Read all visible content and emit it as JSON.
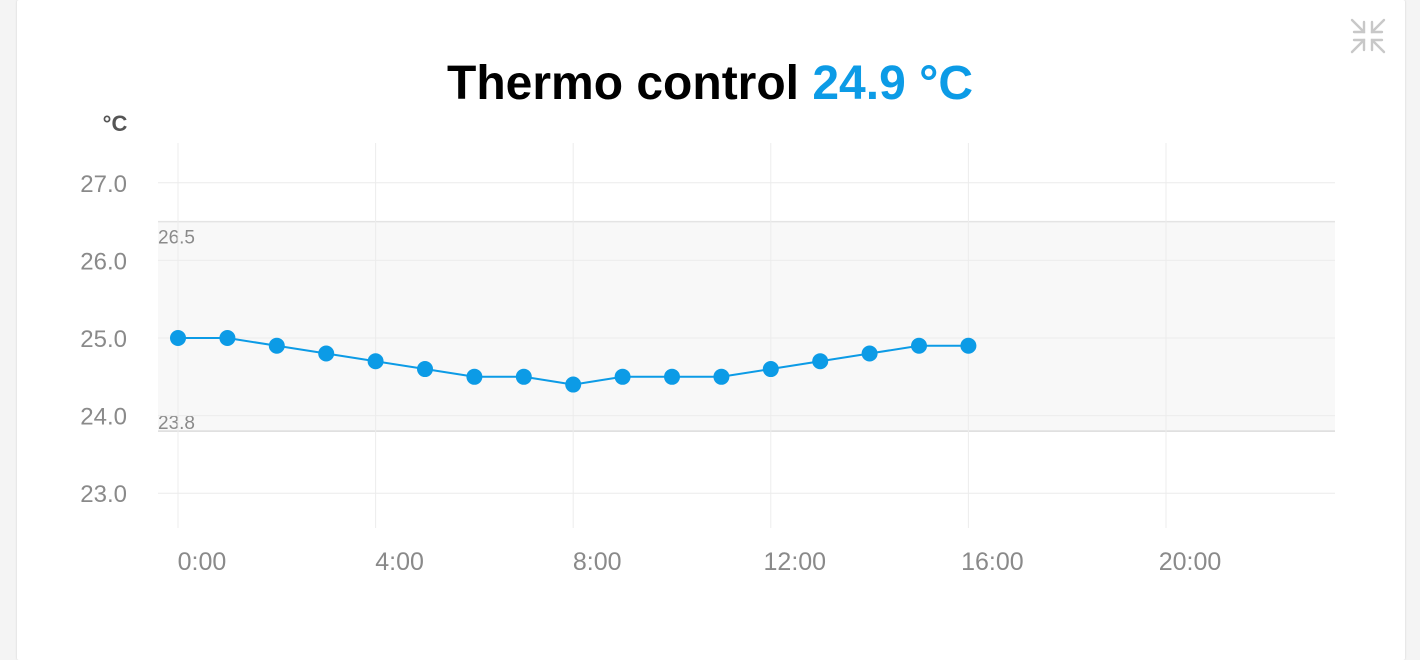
{
  "header": {
    "title": "Thermo control",
    "current_value": "24.9 °C"
  },
  "colors": {
    "accent": "#0c9be6",
    "band_fill": "#f8f8f8",
    "grid": "#ececec",
    "tick_text": "#8a8a8a"
  },
  "icons": {
    "collapse": "collapse-arrows-icon"
  },
  "chart_data": {
    "type": "line",
    "ylabel": "°C",
    "xlabel": "",
    "ylim": [
      22.6,
      27.5
    ],
    "xlim": [
      0,
      23.5
    ],
    "y_ticks": [
      "23.0",
      "24.0",
      "25.0",
      "26.0",
      "27.0"
    ],
    "x_ticks": [
      "0:00",
      "4:00",
      "8:00",
      "12:00",
      "16:00",
      "20:00"
    ],
    "grid": true,
    "band": {
      "low": 23.8,
      "high": 26.5,
      "low_label": "23.8",
      "high_label": "26.5"
    },
    "series": [
      {
        "x": [
          0,
          1,
          2,
          3,
          4,
          5,
          6,
          7,
          8,
          9,
          10,
          11,
          12,
          13,
          14,
          15,
          16
        ],
        "values": [
          25.0,
          25.0,
          24.9,
          24.8,
          24.7,
          24.6,
          24.5,
          24.5,
          24.4,
          24.5,
          24.5,
          24.5,
          24.6,
          24.7,
          24.8,
          24.9,
          24.9
        ]
      }
    ]
  }
}
